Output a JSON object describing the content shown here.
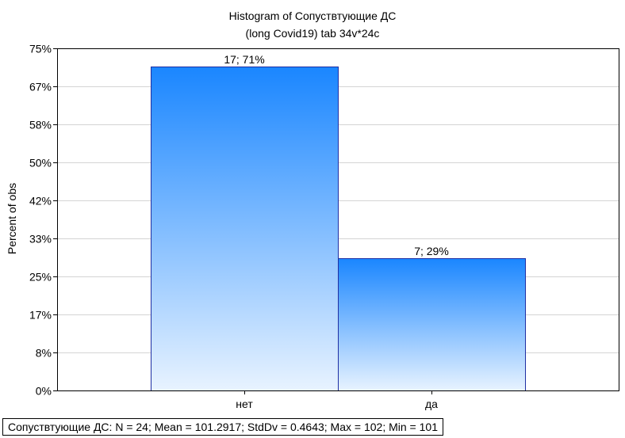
{
  "chart_data": {
    "type": "bar",
    "title": "Histogram of Сопуствтующие ДС",
    "subtitle": "(long Covid19) tab 34v*24c",
    "ylabel": "Percent of obs",
    "xlabel": "",
    "categories": [
      "нет",
      "да"
    ],
    "values": [
      71,
      29
    ],
    "data_labels": [
      "17; 71%",
      "7; 29%"
    ],
    "ylim": [
      0,
      75
    ],
    "y_ticks": [
      0,
      8.333,
      16.667,
      25,
      33.333,
      41.667,
      50,
      58.333,
      66.667,
      75
    ],
    "y_tick_labels": [
      "0%",
      "8%",
      "17%",
      "25%",
      "33%",
      "42%",
      "50%",
      "58%",
      "67%",
      "75%"
    ],
    "grid": true,
    "bar_color_top": "#1a86ff",
    "bar_color_bottom": "#e8f3ff",
    "bar_edge_color": "#1f2fa3"
  },
  "footer": {
    "text": "Сопуствтующие ДС:   N = 24; Mean = 101.2917; StdDv = 0.4643; Max = 102; Min = 101"
  }
}
